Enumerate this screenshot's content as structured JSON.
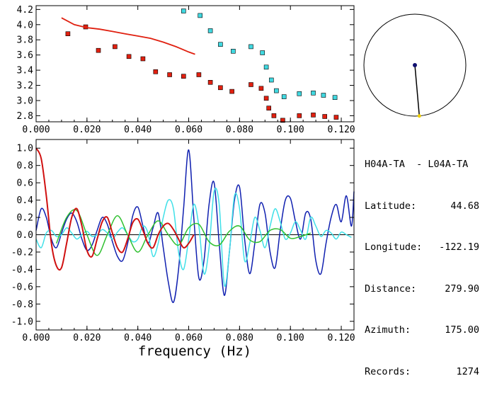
{
  "chart_data": [
    {
      "type": "scatter",
      "title": "",
      "xlabel": "",
      "ylabel": "",
      "xlim": [
        0.0,
        0.125
      ],
      "ylim": [
        2.72,
        4.25
      ],
      "xticks": [
        "0.000",
        "0.020",
        "0.040",
        "0.060",
        "0.080",
        "0.100",
        "0.120"
      ],
      "yticks": [
        "2.8",
        "3.0",
        "3.2",
        "3.4",
        "3.6",
        "3.8",
        "4.0",
        "4.2"
      ],
      "series": [
        {
          "color": "#e02010",
          "marker": "square",
          "x": [
            0.0125,
            0.0195,
            0.0245,
            0.031,
            0.0365,
            0.042,
            0.047,
            0.0525,
            0.058,
            0.064,
            0.0685,
            0.0725,
            0.077,
            0.0845,
            0.0885,
            0.0905,
            0.0915,
            0.0935,
            0.097,
            0.1035,
            0.109,
            0.1135,
            0.118
          ],
          "y": [
            3.88,
            3.97,
            3.66,
            3.71,
            3.58,
            3.55,
            3.38,
            3.34,
            3.32,
            3.34,
            3.24,
            3.17,
            3.12,
            3.21,
            3.16,
            3.03,
            2.9,
            2.8,
            2.74,
            2.8,
            2.81,
            2.79,
            2.78
          ]
        },
        {
          "color": "#40d8e0",
          "marker": "square",
          "x": [
            0.058,
            0.0645,
            0.0685,
            0.0725,
            0.0775,
            0.0845,
            0.089,
            0.0905,
            0.0925,
            0.0945,
            0.0975,
            0.1035,
            0.109,
            0.113,
            0.1175
          ],
          "y": [
            4.18,
            4.12,
            3.92,
            3.74,
            3.65,
            3.71,
            3.63,
            3.44,
            3.27,
            3.13,
            3.05,
            3.09,
            3.1,
            3.07,
            3.04
          ]
        },
        {
          "color": "#e02010",
          "marker": "line",
          "x": [
            0.01,
            0.015,
            0.02,
            0.025,
            0.03,
            0.035,
            0.04,
            0.045,
            0.05,
            0.055,
            0.06,
            0.0625
          ],
          "y": [
            4.09,
            4.0,
            3.96,
            3.94,
            3.91,
            3.88,
            3.85,
            3.82,
            3.77,
            3.71,
            3.64,
            3.61
          ]
        }
      ]
    },
    {
      "type": "line",
      "title": "",
      "xlabel": "frequency (Hz)",
      "ylabel": "",
      "xlim": [
        0.0,
        0.125
      ],
      "ylim": [
        -1.1,
        1.1
      ],
      "xticks": [
        "0.000",
        "0.020",
        "0.040",
        "0.060",
        "0.080",
        "0.100",
        "0.120"
      ],
      "yticks": [
        "1.0",
        "0.8",
        "0.6",
        "0.4",
        "0.2",
        "0.0",
        "-0.2",
        "-0.4",
        "-0.6",
        "-0.8",
        "-1.0"
      ],
      "series": [
        {
          "color": "#1020b0",
          "x": [
            0,
            0.002,
            0.004,
            0.006,
            0.008,
            0.01,
            0.012,
            0.014,
            0.016,
            0.018,
            0.02,
            0.022,
            0.024,
            0.026,
            0.028,
            0.03,
            0.032,
            0.034,
            0.036,
            0.038,
            0.04,
            0.042,
            0.044,
            0.046,
            0.048,
            0.05,
            0.052,
            0.054,
            0.056,
            0.058,
            0.06,
            0.062,
            0.064,
            0.066,
            0.068,
            0.07,
            0.072,
            0.074,
            0.076,
            0.078,
            0.08,
            0.082,
            0.084,
            0.086,
            0.088,
            0.09,
            0.092,
            0.094,
            0.096,
            0.098,
            0.1,
            0.102,
            0.104,
            0.106,
            0.108,
            0.11,
            0.112,
            0.114,
            0.116,
            0.118,
            0.12,
            0.122,
            0.124,
            0.125
          ],
          "y": [
            0.05,
            0.3,
            0.2,
            -0.05,
            -0.15,
            0.02,
            0.18,
            0.25,
            0.15,
            -0.05,
            -0.18,
            -0.12,
            0.05,
            0.2,
            0.12,
            -0.08,
            -0.25,
            -0.3,
            -0.1,
            0.22,
            0.32,
            0.1,
            -0.1,
            0.08,
            0.25,
            -0.15,
            -0.55,
            -0.78,
            -0.4,
            0.3,
            0.98,
            0.2,
            -0.5,
            -0.3,
            0.35,
            0.6,
            -0.1,
            -0.7,
            -0.2,
            0.4,
            0.55,
            -0.05,
            -0.45,
            -0.1,
            0.35,
            0.25,
            -0.2,
            -0.38,
            0.05,
            0.4,
            0.42,
            0.15,
            -0.05,
            0.25,
            0.18,
            -0.3,
            -0.45,
            -0.1,
            0.2,
            0.35,
            0.15,
            0.45,
            0.1,
            0.5
          ]
        },
        {
          "color": "#40e0e8",
          "x": [
            0,
            0.002,
            0.004,
            0.006,
            0.008,
            0.01,
            0.012,
            0.014,
            0.016,
            0.018,
            0.02,
            0.022,
            0.024,
            0.026,
            0.028,
            0.03,
            0.032,
            0.034,
            0.036,
            0.038,
            0.04,
            0.042,
            0.044,
            0.046,
            0.048,
            0.05,
            0.052,
            0.054,
            0.056,
            0.058,
            0.06,
            0.062,
            0.064,
            0.066,
            0.068,
            0.07,
            0.072,
            0.074,
            0.076,
            0.078,
            0.08,
            0.082,
            0.084,
            0.086,
            0.088,
            0.09,
            0.092,
            0.094,
            0.096,
            0.098,
            0.1,
            0.102,
            0.104,
            0.106,
            0.108,
            0.11,
            0.112,
            0.114,
            0.116,
            0.118,
            0.12,
            0.122,
            0.124
          ],
          "y": [
            -0.05,
            -0.15,
            0.02,
            0.05,
            -0.02,
            0.0,
            0.08,
            0.02,
            -0.05,
            0.0,
            0.04,
            -0.02,
            0.0,
            0.06,
            0.02,
            -0.05,
            0.03,
            0.08,
            0.0,
            -0.08,
            -0.05,
            0.1,
            0.02,
            -0.25,
            -0.1,
            0.2,
            0.4,
            0.3,
            -0.2,
            -0.4,
            -0.05,
            0.35,
            0.1,
            -0.45,
            -0.15,
            0.5,
            0.35,
            -0.58,
            -0.2,
            0.45,
            0.3,
            -0.3,
            -0.1,
            0.2,
            0.05,
            -0.15,
            0.1,
            0.3,
            0.15,
            -0.05,
            0.02,
            0.15,
            0.05,
            -0.05,
            0.2,
            0.1,
            -0.02,
            0.05,
            0.02,
            -0.05,
            0.03,
            0.0,
            -0.03
          ]
        },
        {
          "color": "#30c030",
          "x": [
            0.008,
            0.012,
            0.016,
            0.02,
            0.024,
            0.028,
            0.032,
            0.036,
            0.04,
            0.044,
            0.048,
            0.052,
            0.056,
            0.06,
            0.064,
            0.068,
            0.072,
            0.076,
            0.08,
            0.084,
            0.088,
            0.092,
            0.096,
            0.1,
            0.104,
            0.108
          ],
          "y": [
            -0.1,
            0.2,
            0.28,
            0.0,
            -0.24,
            0.0,
            0.22,
            0.0,
            -0.2,
            0.0,
            0.16,
            0.0,
            -0.12,
            0.08,
            0.12,
            -0.08,
            -0.12,
            0.04,
            0.1,
            -0.06,
            -0.08,
            0.05,
            0.06,
            -0.04,
            -0.02,
            0.02
          ]
        },
        {
          "color": "#d01010",
          "x": [
            0,
            0.002,
            0.004,
            0.006,
            0.008,
            0.01,
            0.012,
            0.014,
            0.016,
            0.018,
            0.02,
            0.022,
            0.024,
            0.026,
            0.028,
            0.03,
            0.032,
            0.034,
            0.036,
            0.038,
            0.04,
            0.042,
            0.044,
            0.046,
            0.048,
            0.05,
            0.052,
            0.054,
            0.056,
            0.058,
            0.06,
            0.062
          ],
          "y": [
            1.0,
            0.88,
            0.45,
            -0.1,
            -0.36,
            -0.38,
            -0.1,
            0.2,
            0.3,
            0.1,
            -0.18,
            -0.25,
            -0.05,
            0.15,
            0.2,
            0.02,
            -0.15,
            -0.2,
            -0.05,
            0.14,
            0.18,
            0.05,
            -0.1,
            -0.15,
            0.0,
            0.1,
            0.13,
            0.06,
            -0.05,
            -0.15,
            -0.1,
            0.0
          ]
        }
      ]
    },
    {
      "type": "diagram",
      "title": "",
      "azimuth_deg": 175.0,
      "needle_length": 1.0,
      "circle_color": "#000000",
      "needle_color": "#000000",
      "center_dot_color": "#101070",
      "tip_dot_color": "#f0d000"
    }
  ],
  "info": {
    "header": "H04A-TA  - L04A-TA",
    "rows": [
      {
        "label": "Latitude:",
        "value": "44.68"
      },
      {
        "label": "Longitude:",
        "value": "-122.19"
      },
      {
        "label": "Distance:",
        "value": "279.90"
      },
      {
        "label": "Azimuth:",
        "value": "175.00"
      },
      {
        "label": "Records:",
        "value": "1274"
      }
    ]
  }
}
